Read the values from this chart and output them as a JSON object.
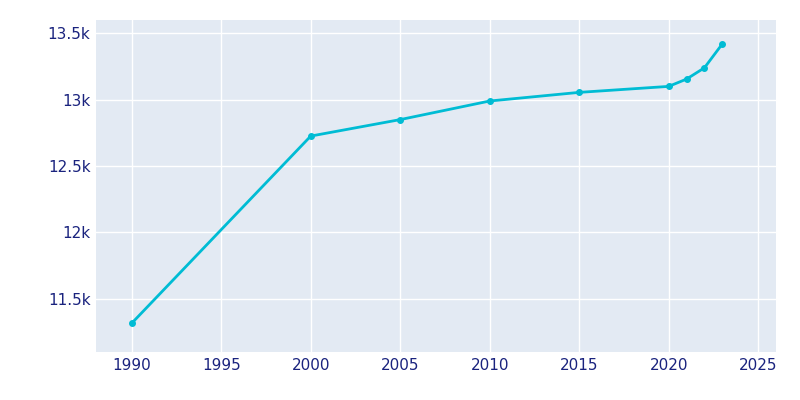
{
  "years": [
    1990,
    2000,
    2005,
    2010,
    2015,
    2020,
    2021,
    2022,
    2023
  ],
  "population": [
    11317,
    12726,
    12850,
    12990,
    13055,
    13100,
    13155,
    13240,
    13420
  ],
  "line_color": "#00BCD4",
  "marker_color": "#00BCD4",
  "bg_color": "#FFFFFF",
  "axes_bg_color": "#E3EAF3",
  "grid_color": "#FFFFFF",
  "tick_label_color": "#1a237e",
  "xlim": [
    1988,
    2026
  ],
  "ylim": [
    11100,
    13600
  ],
  "xticks": [
    1990,
    1995,
    2000,
    2005,
    2010,
    2015,
    2020,
    2025
  ],
  "yticks": [
    11500,
    12000,
    12500,
    13000,
    13500
  ],
  "ytick_labels": [
    "11.5k",
    "12k",
    "12.5k",
    "13k",
    "13.5k"
  ],
  "line_width": 2.0,
  "marker_size": 4
}
